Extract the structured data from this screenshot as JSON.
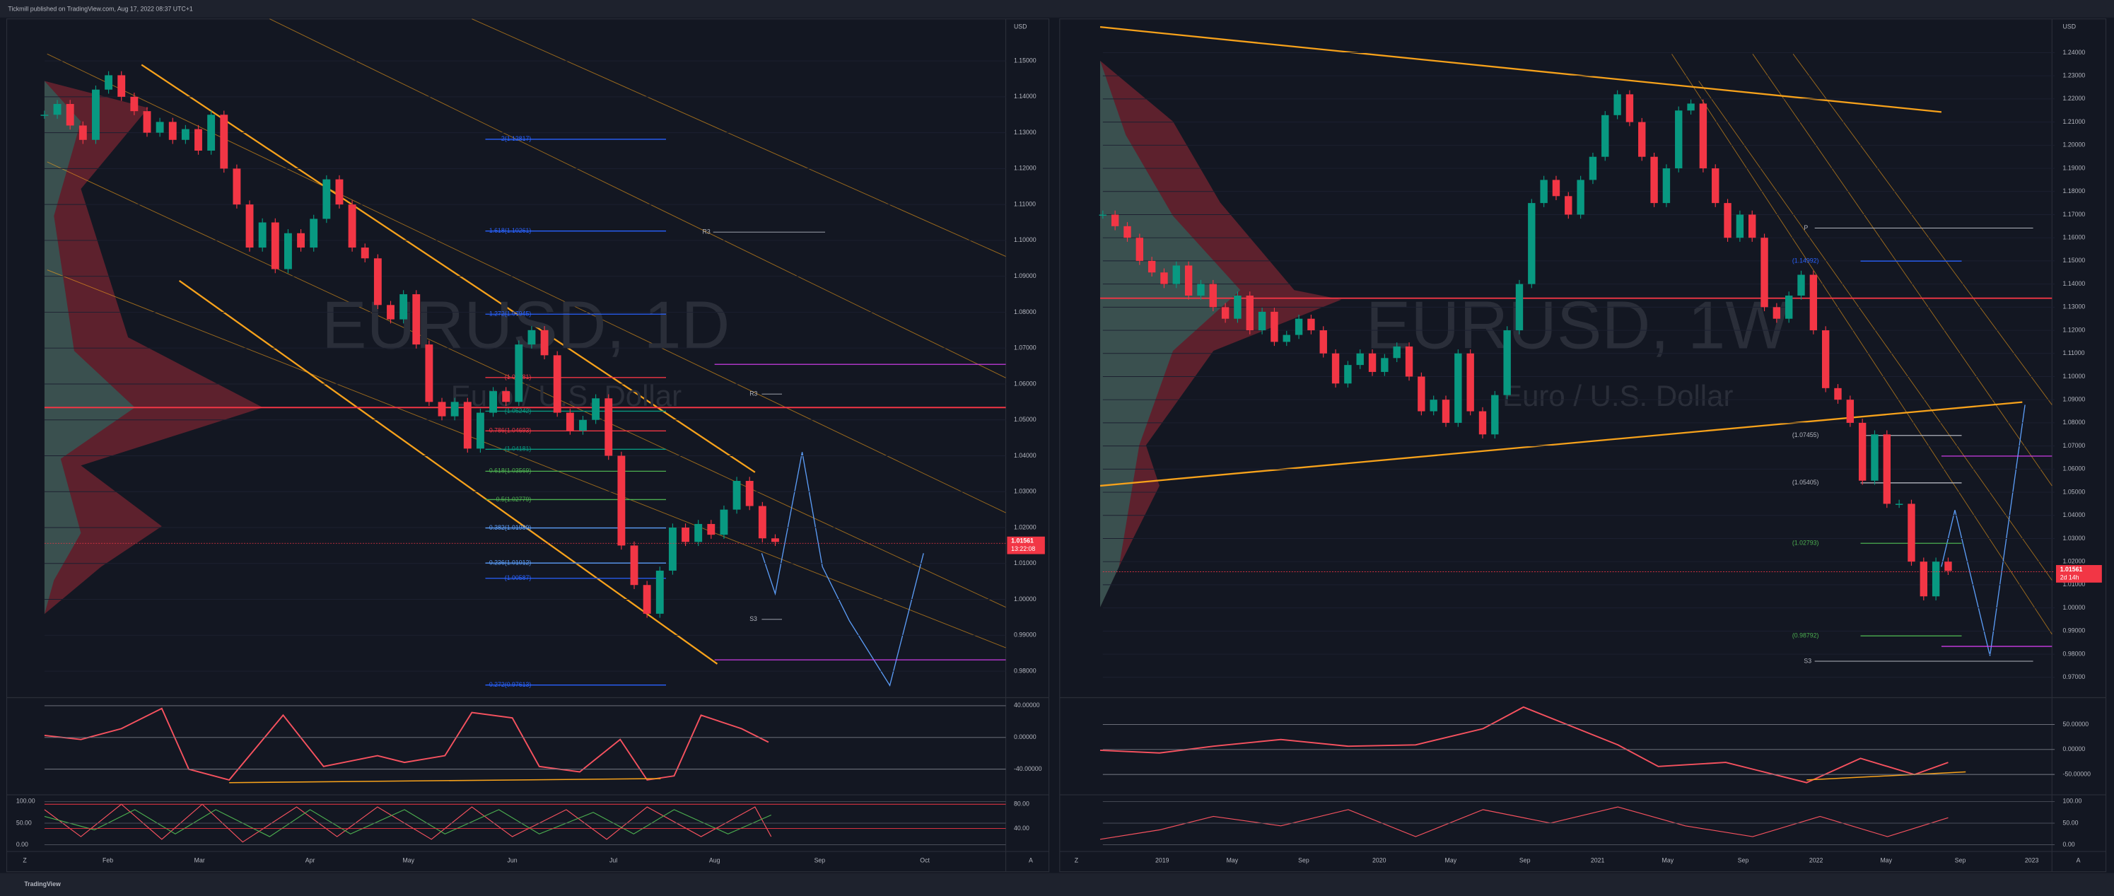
{
  "header": {
    "text": "Tickmill published on TradingView.com, Aug 17, 2022 08:37 UTC+1"
  },
  "footer": {
    "brand": "TradingView"
  },
  "charts": [
    {
      "symbol": "EURUSD, 1D",
      "description": "Euro / U.S. Dollar",
      "currency": "USD",
      "ylim": [
        0.973,
        1.1617
      ],
      "yticks": [
        {
          "value": 1.15,
          "label": "1.15000"
        },
        {
          "value": 1.14,
          "label": "1.14000"
        },
        {
          "value": 1.13,
          "label": "1.13000"
        },
        {
          "value": 1.12,
          "label": "1.12000"
        },
        {
          "value": 1.11,
          "label": "1.11000"
        },
        {
          "value": 1.1,
          "label": "1.10000"
        },
        {
          "value": 1.09,
          "label": "1.09000"
        },
        {
          "value": 1.08,
          "label": "1.08000"
        },
        {
          "value": 1.07,
          "label": "1.07000"
        },
        {
          "value": 1.06,
          "label": "1.06000"
        },
        {
          "value": 1.05,
          "label": "1.05000"
        },
        {
          "value": 1.04,
          "label": "1.04000"
        },
        {
          "value": 1.03,
          "label": "1.03000"
        },
        {
          "value": 1.02,
          "label": "1.02000"
        },
        {
          "value": 1.01,
          "label": "1.01000"
        },
        {
          "value": 1,
          "label": "1.00000"
        },
        {
          "value": 0.99,
          "label": "0.99000"
        },
        {
          "value": 0.98,
          "label": "0.98000"
        }
      ],
      "last_price": {
        "value": 1.01561,
        "label": "1.01561"
      },
      "countdown": "13:22:08",
      "xlabels": [
        "Feb",
        "Mar",
        "Apr",
        "May",
        "Jun",
        "Jul",
        "Aug",
        "Sep",
        "Oct"
      ],
      "closes": [
        1.135,
        1.138,
        1.132,
        1.128,
        1.142,
        1.146,
        1.14,
        1.136,
        1.13,
        1.133,
        1.128,
        1.131,
        1.125,
        1.135,
        1.12,
        1.11,
        1.098,
        1.105,
        1.092,
        1.102,
        1.098,
        1.106,
        1.117,
        1.11,
        1.098,
        1.095,
        1.082,
        1.078,
        1.085,
        1.071,
        1.055,
        1.051,
        1.055,
        1.042,
        1.052,
        1.058,
        1.055,
        1.071,
        1.075,
        1.068,
        1.052,
        1.047,
        1.05,
        1.056,
        1.04,
        1.015,
        1.004,
        0.996,
        1.008,
        1.02,
        1.016,
        1.021,
        1.018,
        1.025,
        1.033,
        1.026,
        1.017,
        1.016
      ],
      "levels": [
        {
          "value": 1.12817,
          "label": "2(1.12817)",
          "color": "#2962ff"
        },
        {
          "value": 1.10261,
          "label": "1.618(1.10261)",
          "color": "#2962ff"
        },
        {
          "value": 1.07945,
          "label": "1.272(1.07945)",
          "color": "#2962ff"
        },
        {
          "value": 1.06181,
          "label": "(1.06181)",
          "color": "#f23645"
        },
        {
          "value": 1.05242,
          "label": "(1.05242)",
          "color": "#089981"
        },
        {
          "value": 1.04693,
          "label": "0.786(1.04693)",
          "color": "#f23645"
        },
        {
          "value": 1.04181,
          "label": "(1.04181)",
          "color": "#089981"
        },
        {
          "value": 1.03569,
          "label": "0.618(1.03569)",
          "color": "#4caf50"
        },
        {
          "value": 1.02779,
          "label": "0.5(1.02779)",
          "color": "#4caf50"
        },
        {
          "value": 1.01989,
          "label": "0.382(1.01989)",
          "color": "#5b9cf6"
        },
        {
          "value": 1.01012,
          "label": "0.236(1.01012)",
          "color": "#5b9cf6"
        },
        {
          "value": 1.00587,
          "label": "(1.00587)",
          "color": "#2962ff"
        },
        {
          "value": 0.97613,
          "label": "-0.272(0.97613)",
          "color": "#2962ff"
        }
      ],
      "osc1_ylim": [
        -70.6,
        48.5
      ],
      "osc1_ticks": [
        {
          "value": 40,
          "label": "40.00000"
        },
        {
          "value": 0,
          "label": "0.00000"
        },
        {
          "value": -40,
          "label": "-40.00000"
        }
      ],
      "osc2_ylim": [
        -12.5,
        112.5
      ],
      "osc2_ticks": [
        {
          "value": 100,
          "label": "100.00"
        },
        {
          "value": 50,
          "label": "50.00"
        },
        {
          "value": 0,
          "label": "0.00"
        }
      ],
      "osc2_right_ylim": [
        4.4,
        93.3
      ],
      "osc2_right_ticks": [
        {
          "value": 80,
          "label": "80.00"
        },
        {
          "value": 40,
          "label": "40.00"
        }
      ]
    },
    {
      "symbol": "EURUSD, 1W",
      "description": "Euro / U.S. Dollar",
      "currency": "USD",
      "ylim": [
        0.9618,
        1.2546
      ],
      "yticks": [
        {
          "value": 1.24,
          "label": "1.24000"
        },
        {
          "value": 1.23,
          "label": "1.23000"
        },
        {
          "value": 1.22,
          "label": "1.22000"
        },
        {
          "value": 1.21,
          "label": "1.21000"
        },
        {
          "value": 1.2,
          "label": "1.20000"
        },
        {
          "value": 1.19,
          "label": "1.19000"
        },
        {
          "value": 1.18,
          "label": "1.18000"
        },
        {
          "value": 1.17,
          "label": "1.17000"
        },
        {
          "value": 1.16,
          "label": "1.16000"
        },
        {
          "value": 1.15,
          "label": "1.15000"
        },
        {
          "value": 1.14,
          "label": "1.14000"
        },
        {
          "value": 1.13,
          "label": "1.13000"
        },
        {
          "value": 1.12,
          "label": "1.12000"
        },
        {
          "value": 1.11,
          "label": "1.11000"
        },
        {
          "value": 1.1,
          "label": "1.10000"
        },
        {
          "value": 1.09,
          "label": "1.09000"
        },
        {
          "value": 1.08,
          "label": "1.08000"
        },
        {
          "value": 1.07,
          "label": "1.07000"
        },
        {
          "value": 1.06,
          "label": "1.06000"
        },
        {
          "value": 1.05,
          "label": "1.05000"
        },
        {
          "value": 1.04,
          "label": "1.04000"
        },
        {
          "value": 1.03,
          "label": "1.03000"
        },
        {
          "value": 1.02,
          "label": "1.02000"
        },
        {
          "value": 1.01,
          "label": "1.01000"
        },
        {
          "value": 1,
          "label": "1.00000"
        },
        {
          "value": 0.99,
          "label": "0.99000"
        },
        {
          "value": 0.98,
          "label": "0.98000"
        },
        {
          "value": 0.97,
          "label": "0.97000"
        }
      ],
      "last_price": {
        "value": 1.01561,
        "label": "1.01561"
      },
      "countdown": "2d 14h",
      "xlabels": [
        "2019",
        "May",
        "Sep",
        "2020",
        "May",
        "Sep",
        "2021",
        "May",
        "Sep",
        "2022",
        "May",
        "Sep",
        "2023"
      ],
      "closes": [
        1.17,
        1.165,
        1.16,
        1.15,
        1.145,
        1.14,
        1.148,
        1.135,
        1.14,
        1.13,
        1.125,
        1.135,
        1.12,
        1.128,
        1.115,
        1.118,
        1.125,
        1.12,
        1.11,
        1.097,
        1.105,
        1.11,
        1.102,
        1.108,
        1.113,
        1.1,
        1.085,
        1.09,
        1.08,
        1.11,
        1.085,
        1.075,
        1.092,
        1.12,
        1.14,
        1.175,
        1.185,
        1.178,
        1.17,
        1.185,
        1.195,
        1.213,
        1.222,
        1.21,
        1.195,
        1.175,
        1.19,
        1.215,
        1.218,
        1.19,
        1.175,
        1.16,
        1.17,
        1.16,
        1.13,
        1.125,
        1.135,
        1.144,
        1.12,
        1.095,
        1.09,
        1.08,
        1.055,
        1.075,
        1.045,
        1.045,
        1.02,
        1.005,
        1.02,
        1.016
      ],
      "levels": [
        {
          "value": 1.14992,
          "label": "(1.14992)",
          "color": "#2962ff"
        },
        {
          "value": 1.07455,
          "label": "(1.07455)",
          "color": "#b2b5be"
        },
        {
          "value": 1.05405,
          "label": "(1.05405)",
          "color": "#b2b5be"
        },
        {
          "value": 1.02793,
          "label": "(1.02793)",
          "color": "#4caf50"
        },
        {
          "value": 0.98792,
          "label": "(0.98792)",
          "color": "#4caf50"
        }
      ],
      "osc1_ylim": [
        -88,
        101
      ],
      "osc1_ticks": [
        {
          "value": 50,
          "label": "50.00000"
        },
        {
          "value": 0,
          "label": "0.00000"
        },
        {
          "value": -50,
          "label": "-50.00000"
        }
      ],
      "osc2_ylim": [
        -12.5,
        112.5
      ],
      "osc2_ticks": [
        {
          "value": 100,
          "label": "100.00"
        },
        {
          "value": 50,
          "label": "50.00"
        },
        {
          "value": 0,
          "label": "0.00"
        }
      ]
    }
  ],
  "pivots": [
    "R3",
    "R3",
    "S3",
    "P",
    "S3"
  ],
  "axis_buttons": [
    "Z",
    "A"
  ]
}
